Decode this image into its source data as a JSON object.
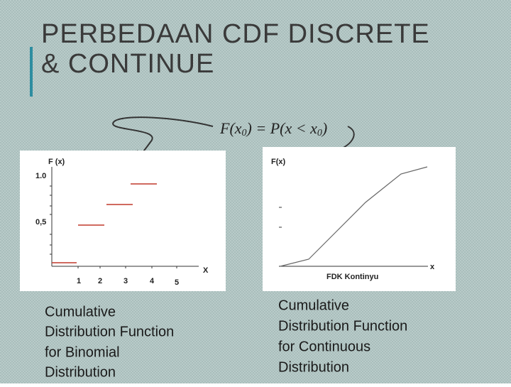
{
  "slide": {
    "title": [
      "PERBEDAAN CDF DISCRETE",
      "& CONTINUE"
    ],
    "formula": {
      "lhs": "F(x",
      "sub1": "0",
      "mid": ") = P(x < x",
      "sub2": "0",
      "end": ")"
    },
    "left_figure": {
      "y_label": "F (x)",
      "y_tick_top": "1.0",
      "y_tick_mid": "0,5",
      "x_label": "X",
      "x_ticks": [
        "1",
        "2",
        "3",
        "4",
        "5"
      ]
    },
    "right_figure": {
      "y_label": "F(x)",
      "x_label": "x",
      "caption": "FDK Kontinyu"
    },
    "left_caption": [
      "Cumulative",
      "Distribution Function",
      "for Binomial",
      "Distribution"
    ],
    "right_caption": [
      "Cumulative",
      "Distribution Function",
      "for Continuous",
      "Distribution"
    ]
  }
}
